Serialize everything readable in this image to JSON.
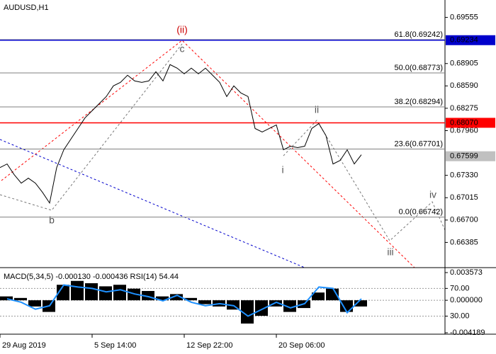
{
  "chart_data": [
    {
      "type": "line",
      "title": "AUDUSD,H1",
      "color": "#000000",
      "values": [
        0.6744,
        0.6749,
        0.6734,
        0.6722,
        0.6729,
        0.6722,
        0.6709,
        0.6694,
        0.6744,
        0.6769,
        0.6784,
        0.6799,
        0.6814,
        0.6824,
        0.6834,
        0.6844,
        0.6859,
        0.6864,
        0.6874,
        0.6866,
        0.6864,
        0.6866,
        0.6879,
        0.6866,
        0.6889,
        0.6884,
        0.6876,
        0.6884,
        0.6876,
        0.6884,
        0.6874,
        0.6864,
        0.6844,
        0.6859,
        0.6849,
        0.6844,
        0.6799,
        0.6794,
        0.6799,
        0.6804,
        0.6769,
        0.6774,
        0.6772,
        0.6774,
        0.6799,
        0.6806,
        0.6789,
        0.6749,
        0.6754,
        0.6769,
        0.6749,
        0.6762
      ],
      "xlim": [
        0,
        62.8
      ],
      "xticks": [
        {
          "value": 0,
          "label": "29 Aug 2019"
        },
        {
          "value": 13,
          "label": "5 Sep 14:00"
        },
        {
          "value": 26,
          "label": "12 Sep 22:00"
        },
        {
          "value": 39,
          "label": "20 Sep 06:00"
        }
      ],
      "ylim": [
        0.6603,
        0.698
      ],
      "yticks": [
        0.69555,
        0.68905,
        {
          "value": 0.6859,
          "label": "0.68590"
        },
        0.68275,
        {
          "value": 0.6796,
          "label": "0.67960"
        },
        {
          "value": 0.6733,
          "label": "0.67330"
        },
        0.67015,
        {
          "value": 0.667,
          "label": "0.66700"
        },
        0.66385
      ],
      "levels": [
        {
          "value": 0.69234,
          "label": "0.69234",
          "color": "#0000cc"
        },
        {
          "value": 0.6807,
          "label": "0.68070",
          "color": "#ff0000"
        },
        {
          "value": 0.67599,
          "label": "0.67599",
          "color": "#c0c0c0"
        }
      ],
      "fib_levels": [
        {
          "value": 0.69242,
          "label": "61.8(0.69242)"
        },
        {
          "value": 0.68773,
          "label": "50.0(0.68773)"
        },
        {
          "value": 0.68294,
          "label": "38.2(0.68294)"
        },
        {
          "value": 0.67701,
          "label": "23.6(0.67701)"
        },
        {
          "value": 0.66742,
          "label": "0.0(0.66742)"
        }
      ],
      "annotations": [
        {
          "text": "(ii)",
          "color": "#cc0000"
        },
        {
          "text": "c"
        },
        {
          "text": "b"
        },
        {
          "text": "i"
        },
        {
          "text": "ii"
        },
        {
          "text": "iii"
        },
        {
          "text": "iv"
        }
      ]
    },
    {
      "type": "bar",
      "title": "MACD(5,34,5) -0.000130 -0.000436 RSI(14) 54.44",
      "color": "#000000",
      "values": [
        0.0005,
        0.0003,
        -0.0008,
        -0.0015,
        0.002,
        0.0025,
        0.0022,
        0.0018,
        0.002,
        0.0015,
        0.0012,
        0.0005,
        0.0008,
        0.0003,
        -0.0005,
        -0.0008,
        -0.0012,
        -0.003,
        -0.002,
        -0.0008,
        -0.0015,
        -0.001,
        0.001,
        0.0015,
        -0.0015,
        -0.0008
      ],
      "ylim": [
        -0.004189,
        0.003573
      ],
      "yticks": [
        0.003573,
        {
          "value": 0,
          "label": "0.000000"
        },
        -0.004189
      ],
      "series": [
        {
          "color": "#1e90ff",
          "axis": "y2",
          "values": [
            55,
            50,
            40,
            45,
            75,
            72,
            70,
            65,
            68,
            62,
            58,
            52,
            60,
            50,
            45,
            48,
            45,
            30,
            40,
            50,
            42,
            48,
            72,
            70,
            35,
            55
          ]
        }
      ],
      "y2lim": [
        6,
        100
      ],
      "y2ticks": [
        {
          "value": 70,
          "label": "70.00"
        },
        {
          "value": 30,
          "label": "30.00"
        }
      ]
    }
  ]
}
